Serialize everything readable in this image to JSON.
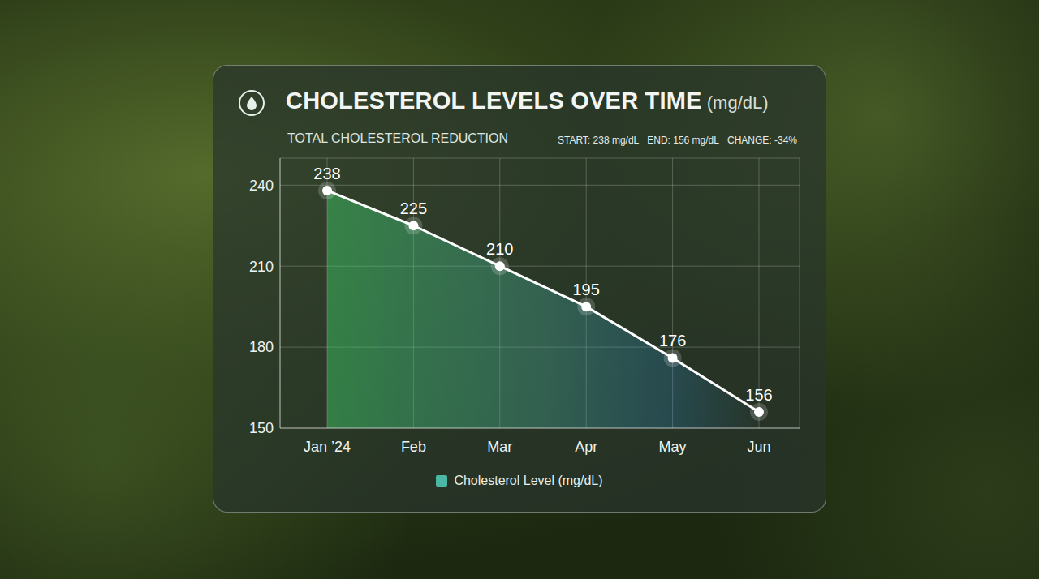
{
  "chart_data": {
    "type": "line",
    "title": "CHOLESTEROL LEVELS OVER TIME (mg/dL)",
    "subtitle": "TOTAL CHOLESTEROL REDUCTION",
    "annotations": [
      "START: 238 mg/dL",
      "END: 156 mg/dL",
      "CHANGE: -34%"
    ],
    "categories": [
      "Jan ’24",
      "Feb",
      "Mar",
      "Apr",
      "May",
      "Jun"
    ],
    "series": [
      {
        "name": "Cholesterol Level (mg/dL)",
        "color": "#4ab8a4",
        "values": [
          238,
          225,
          210,
          195,
          176,
          156
        ],
        "marker": "circle"
      }
    ],
    "ylim": [
      150,
      250
    ],
    "yticks": [
      150,
      180,
      210,
      240
    ],
    "grid": true,
    "data_labels": true,
    "legend": "bottom"
  }
}
